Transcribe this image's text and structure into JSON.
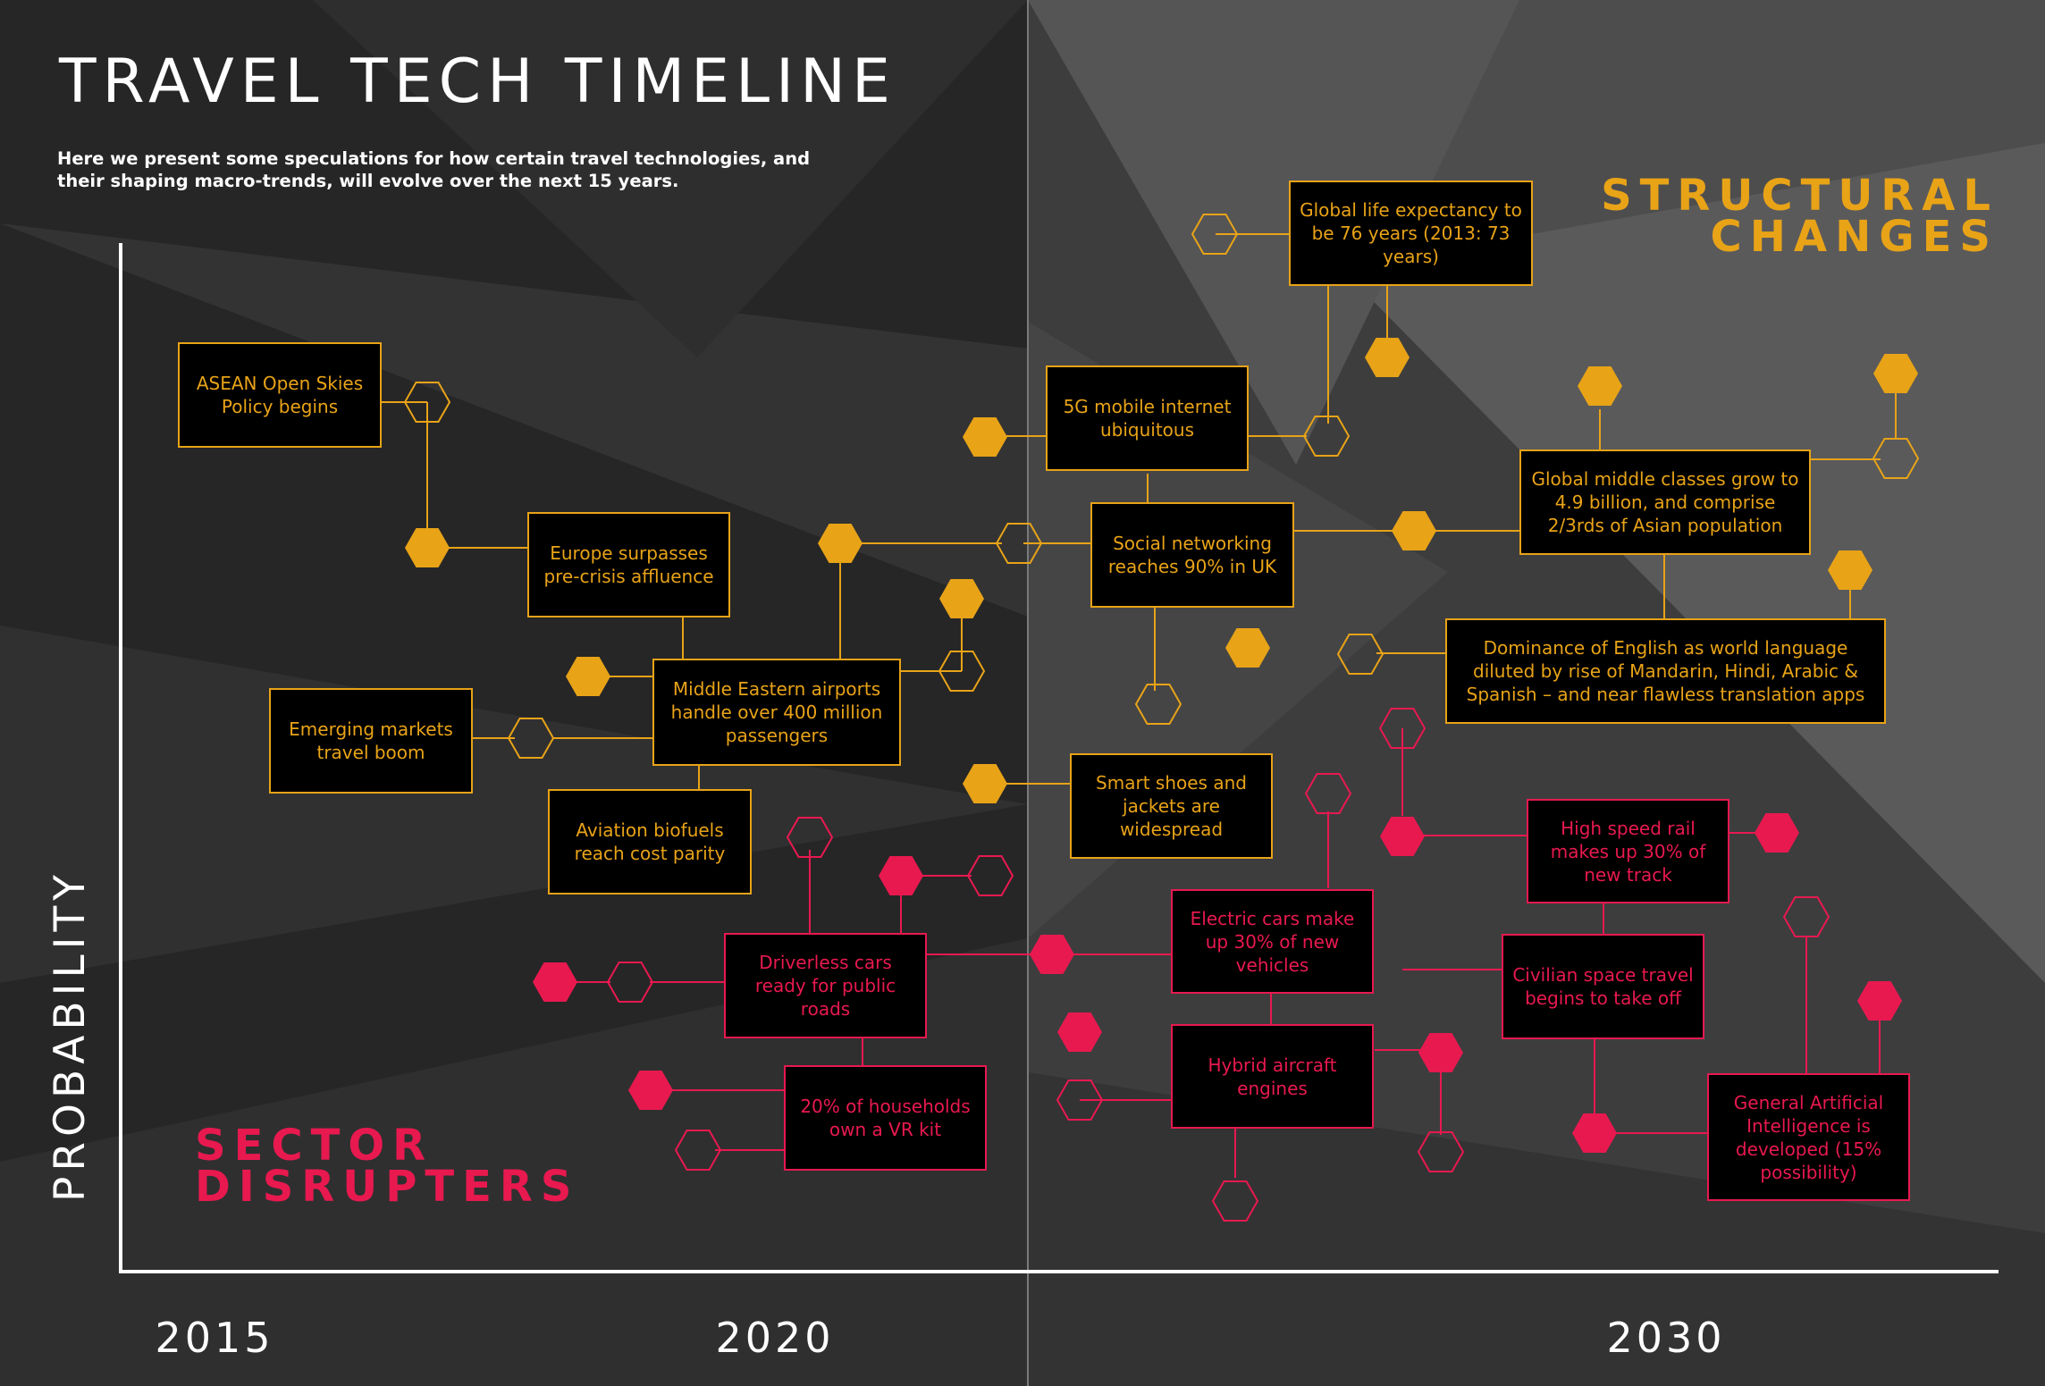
{
  "title": "TRAVEL TECH TIMELINE",
  "subtitle": "Here we present some speculations for how certain travel technologies, and their shaping macro-trends, will evolve over the next 15 years.",
  "structural_label": "STRUCTURAL\nCHANGES",
  "sector_label": "SECTOR\nDISRUPTERS",
  "y_axis_label": "PROBABILITY",
  "x_axis_labels": [
    "2015",
    "2020",
    "2030"
  ],
  "colors": {
    "background": "#2b2b2c",
    "structural": "#e8a317",
    "disrupter": "#e8194f",
    "box_fill": "#000000",
    "axis": "#ffffff"
  },
  "events": {
    "asean": "ASEAN Open Skies Policy begins",
    "europe": "Europe surpasses pre-crisis affluence",
    "emerging": "Emerging markets travel boom",
    "middle_eastern": "Middle Eastern airports handle over 400 million passengers",
    "biofuels": "Aviation biofuels reach cost parity",
    "life_expectancy": "Global life expectancy to be 76 years (2013: 73 years)",
    "five_g": "5G mobile internet ubiquitous",
    "social": "Social networking reaches 90% in UK",
    "middle_classes": "Global middle classes grow to 4.9 billion, and comprise 2/3rds of Asian population",
    "english": "Dominance of English as world language diluted by rise of Mandarin, Hindi, Arabic & Spanish – and near flawless translation apps",
    "smart_shoes": "Smart shoes and jackets are widespread",
    "driverless": "Driverless cars ready for public roads",
    "vr": "20% of households own a VR kit",
    "electric": "Electric cars make up 30% of new vehicles",
    "hybrid": "Hybrid aircraft engines",
    "rail": "High speed rail makes up 30% of new track",
    "space": "Civilian space travel begins to take off",
    "agi": "General Artificial Intelligence is developed (15% possibility)"
  }
}
